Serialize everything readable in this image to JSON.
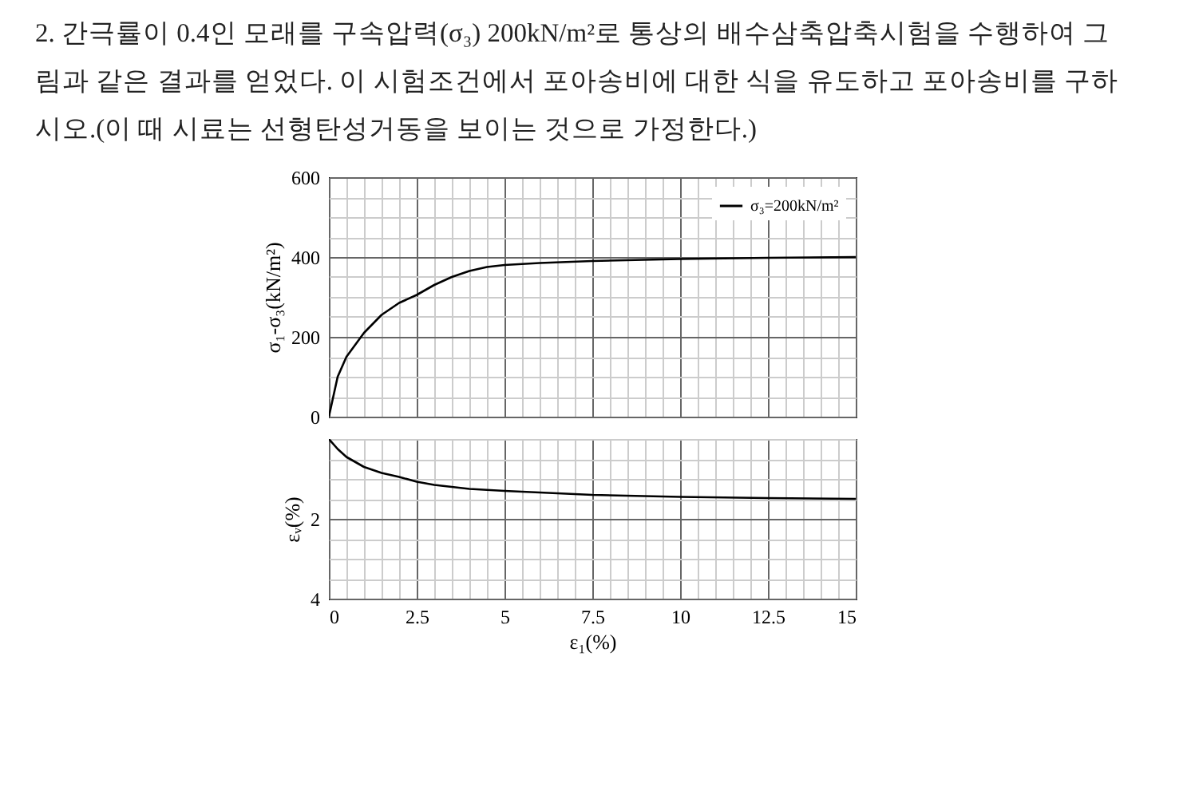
{
  "chart_data": [
    {
      "type": "line",
      "title": "2. 간극률이 0.4인 모래를 구속압력(σ₃) 200kN/m²로 통상의 배수삼축압축시험을 수행하여 그림과 같은 결과를 얻었다. 이 시험조건에서 포아송비에 대한 식을 유도하고 포아송비를 구하시오.(이 때 시료는 선형탄성거동을 보이는 것으로 가정한다.)",
      "ylabel": "σ₁-σ₃(kN/m²)",
      "x": [
        0,
        0.25,
        0.5,
        1,
        1.5,
        2,
        2.5,
        3,
        3.5,
        4,
        4.5,
        5,
        6,
        7.5,
        10,
        12.5,
        15
      ],
      "series": [
        {
          "name": "σ₃=200kN/m²",
          "color": "#000000",
          "values": [
            0,
            100,
            150,
            210,
            255,
            285,
            305,
            330,
            350,
            365,
            375,
            380,
            385,
            390,
            395,
            398,
            400
          ]
        }
      ],
      "xlim": [
        0,
        15
      ],
      "xticks": [
        0,
        {
          "value": 0.5,
          "label": null
        },
        {
          "value": 1,
          "label": null
        },
        {
          "value": 1.5,
          "label": null
        },
        {
          "value": 2,
          "label": null
        },
        2.5,
        {
          "value": 3,
          "label": null
        },
        {
          "value": 3.5,
          "label": null
        },
        {
          "value": 4,
          "label": null
        },
        {
          "value": 4.5,
          "label": null
        },
        5,
        {
          "value": 5.5,
          "label": null
        },
        {
          "value": 6,
          "label": null
        },
        {
          "value": 6.5,
          "label": null
        },
        {
          "value": 7,
          "label": null
        },
        7.5,
        {
          "value": 8,
          "label": null
        },
        {
          "value": 8.5,
          "label": null
        },
        {
          "value": 9,
          "label": null
        },
        {
          "value": 9.5,
          "label": null
        },
        10,
        {
          "value": 10.5,
          "label": null
        },
        {
          "value": 11,
          "label": null
        },
        {
          "value": 11.5,
          "label": null
        },
        {
          "value": 12,
          "label": null
        },
        12.5,
        {
          "value": 13,
          "label": null
        },
        {
          "value": 13.5,
          "label": null
        },
        {
          "value": 14,
          "label": null
        },
        {
          "value": 14.5,
          "label": null
        },
        15
      ],
      "ylim": [
        0,
        600
      ],
      "yticks": [
        0,
        {
          "value": 50,
          "label": null
        },
        {
          "value": 100,
          "label": null
        },
        {
          "value": 150,
          "label": null
        },
        200,
        {
          "value": 250,
          "label": null
        },
        {
          "value": 300,
          "label": null
        },
        {
          "value": 350,
          "label": null
        },
        400,
        {
          "value": 450,
          "label": null
        },
        {
          "value": 500,
          "label": null
        },
        {
          "value": 550,
          "label": null
        },
        600
      ],
      "grid": true,
      "legend": "top right",
      "line_style": "solid",
      "tick_labels": "y"
    },
    {
      "type": "line",
      "xlabel": "ε₁(%)",
      "ylabel": "εᵥ(%)",
      "x": [
        0,
        0.25,
        0.5,
        1,
        1.5,
        2,
        2.5,
        3,
        4,
        5,
        7.5,
        10,
        12.5,
        15
      ],
      "series": [
        {
          "color": "#000000",
          "values": [
            0,
            0.25,
            0.45,
            0.7,
            0.85,
            0.95,
            1.07,
            1.15,
            1.25,
            1.3,
            1.4,
            1.45,
            1.48,
            1.5
          ]
        }
      ],
      "xlim": [
        0,
        15
      ],
      "xticks": [
        0,
        {
          "value": 0.5,
          "label": null
        },
        {
          "value": 1,
          "label": null
        },
        {
          "value": 1.5,
          "label": null
        },
        {
          "value": 2,
          "label": null
        },
        2.5,
        {
          "value": 3,
          "label": null
        },
        {
          "value": 3.5,
          "label": null
        },
        {
          "value": 4,
          "label": null
        },
        {
          "value": 4.5,
          "label": null
        },
        5,
        {
          "value": 5.5,
          "label": null
        },
        {
          "value": 6,
          "label": null
        },
        {
          "value": 6.5,
          "label": null
        },
        {
          "value": 7,
          "label": null
        },
        7.5,
        {
          "value": 8,
          "label": null
        },
        {
          "value": 8.5,
          "label": null
        },
        {
          "value": 9,
          "label": null
        },
        {
          "value": 9.5,
          "label": null
        },
        10,
        {
          "value": 10.5,
          "label": null
        },
        {
          "value": 11,
          "label": null
        },
        {
          "value": 11.5,
          "label": null
        },
        {
          "value": 12,
          "label": null
        },
        12.5,
        {
          "value": 13,
          "label": null
        },
        {
          "value": 13.5,
          "label": null
        },
        {
          "value": 14,
          "label": null
        },
        {
          "value": 14.5,
          "label": null
        },
        15
      ],
      "ylim": [
        4,
        0
      ],
      "yticks": [
        {
          "value": 0,
          "label": null
        },
        {
          "value": 0.5,
          "label": null
        },
        {
          "value": 1,
          "label": null
        },
        {
          "value": 1.5,
          "label": null
        },
        2,
        {
          "value": 2.5,
          "label": null
        },
        {
          "value": 3,
          "label": null
        },
        {
          "value": 3.5,
          "label": null
        },
        4
      ],
      "grid": true,
      "line_style": "solid"
    }
  ]
}
